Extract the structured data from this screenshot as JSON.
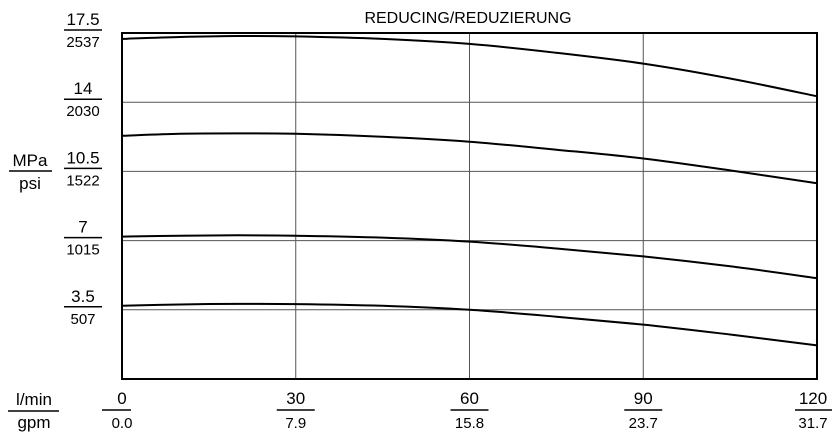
{
  "chart_data": {
    "type": "line",
    "title": "REDUCING/REDUZIERUNG",
    "ylabel": {
      "top": "MPa",
      "bottom": "psi"
    },
    "xlabel": {
      "top": "l/min",
      "bottom": "gpm"
    },
    "xlim": [
      0,
      120
    ],
    "ylim": [
      0,
      17.5
    ],
    "x_ticks": [
      {
        "value": 0,
        "top": "0",
        "bottom": "0.0"
      },
      {
        "value": 30,
        "top": "30",
        "bottom": "7.9"
      },
      {
        "value": 60,
        "top": "60",
        "bottom": "15.8"
      },
      {
        "value": 90,
        "top": "90",
        "bottom": "23.7"
      },
      {
        "value": 120,
        "top": "120",
        "bottom": "31.7"
      }
    ],
    "y_ticks": [
      {
        "value": 3.5,
        "top": "3.5",
        "bottom": "507"
      },
      {
        "value": 7,
        "top": "7",
        "bottom": "1015"
      },
      {
        "value": 10.5,
        "top": "10.5",
        "bottom": "1522"
      },
      {
        "value": 14,
        "top": "14",
        "bottom": "2030"
      },
      {
        "value": 17.5,
        "top": "17.5",
        "bottom": "2537"
      }
    ],
    "grid": true,
    "series": [
      {
        "x": [
          0,
          10,
          20,
          30,
          45,
          60,
          75,
          90,
          105,
          120
        ],
        "values": [
          17.2,
          17.3,
          17.35,
          17.33,
          17.2,
          16.95,
          16.5,
          15.95,
          15.2,
          14.3
        ]
      },
      {
        "x": [
          0,
          10,
          20,
          30,
          45,
          60,
          75,
          90,
          105,
          120
        ],
        "values": [
          12.3,
          12.4,
          12.42,
          12.4,
          12.25,
          12.0,
          11.6,
          11.15,
          10.55,
          9.9
        ]
      },
      {
        "x": [
          0,
          10,
          20,
          30,
          45,
          60,
          75,
          90,
          105,
          120
        ],
        "values": [
          7.2,
          7.25,
          7.27,
          7.25,
          7.15,
          6.95,
          6.6,
          6.2,
          5.7,
          5.1
        ]
      },
      {
        "x": [
          0,
          10,
          20,
          30,
          45,
          60,
          75,
          90,
          105,
          120
        ],
        "values": [
          3.7,
          3.77,
          3.8,
          3.79,
          3.7,
          3.5,
          3.15,
          2.75,
          2.25,
          1.7
        ]
      }
    ]
  }
}
